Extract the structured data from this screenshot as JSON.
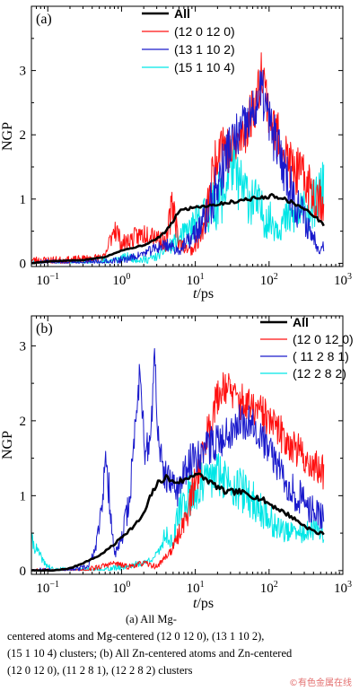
{
  "chart_data": [
    {
      "type": "line",
      "panel_label": "(a)",
      "xlabel_italic": "t",
      "xlabel_unit": "/ps",
      "ylabel": "NGP",
      "xscale": "log",
      "xlim": [
        0.06,
        1000
      ],
      "ylim": [
        -0.05,
        4.0
      ],
      "yticks": [
        "0",
        "1",
        "2",
        "3"
      ],
      "xticks": [
        {
          "v": 0.1,
          "base": "10",
          "exp": "−1"
        },
        {
          "v": 1,
          "base": "10",
          "exp": "0"
        },
        {
          "v": 10,
          "base": "10",
          "exp": "1"
        },
        {
          "v": 100,
          "base": "10",
          "exp": "2"
        },
        {
          "v": 1000,
          "base": "10",
          "exp": "3"
        }
      ],
      "legend_position": "top-center",
      "series": [
        {
          "name": "(15 1 10 4)",
          "color": "#00e6e6",
          "width": 1.0,
          "noise": 0.45,
          "seed": 11,
          "points": [
            [
              0.06,
              0.0
            ],
            [
              0.3,
              0.0
            ],
            [
              0.8,
              0.05
            ],
            [
              1.2,
              0.1
            ],
            [
              2,
              0.05
            ],
            [
              3,
              0.1
            ],
            [
              5,
              0.3
            ],
            [
              8,
              0.5
            ],
            [
              12,
              0.7
            ],
            [
              18,
              0.9
            ],
            [
              25,
              1.1
            ],
            [
              30,
              1.6
            ],
            [
              40,
              1.2
            ],
            [
              60,
              1.0
            ],
            [
              90,
              0.7
            ],
            [
              130,
              0.6
            ],
            [
              200,
              0.7
            ],
            [
              300,
              0.8
            ],
            [
              400,
              0.9
            ],
            [
              500,
              1.1
            ],
            [
              550,
              1.2
            ]
          ]
        },
        {
          "name": "(12 0 12 0)",
          "color": "#ff1010",
          "width": 1.0,
          "noise": 0.4,
          "seed": 23,
          "points": [
            [
              0.06,
              0.05
            ],
            [
              0.2,
              0.05
            ],
            [
              0.6,
              0.1
            ],
            [
              0.8,
              0.6
            ],
            [
              1.0,
              0.3
            ],
            [
              1.5,
              0.4
            ],
            [
              2.5,
              0.5
            ],
            [
              4,
              0.3
            ],
            [
              5,
              1.0
            ],
            [
              6,
              0.3
            ],
            [
              9,
              0.2
            ],
            [
              13,
              0.5
            ],
            [
              18,
              1.5
            ],
            [
              22,
              2.0
            ],
            [
              30,
              1.7
            ],
            [
              45,
              2.0
            ],
            [
              70,
              2.6
            ],
            [
              80,
              3.1
            ],
            [
              100,
              2.3
            ],
            [
              150,
              1.8
            ],
            [
              200,
              1.5
            ],
            [
              300,
              1.3
            ],
            [
              400,
              1.1
            ],
            [
              550,
              1.0
            ]
          ]
        },
        {
          "name": "(13 1 10 2)",
          "color": "#1a1acc",
          "width": 1.0,
          "noise": 0.4,
          "seed": 37,
          "points": [
            [
              0.06,
              0.0
            ],
            [
              0.5,
              0.0
            ],
            [
              1.0,
              0.05
            ],
            [
              1.5,
              0.1
            ],
            [
              2.5,
              0.2
            ],
            [
              4,
              0.3
            ],
            [
              6,
              0.2
            ],
            [
              9,
              0.4
            ],
            [
              14,
              0.7
            ],
            [
              20,
              1.2
            ],
            [
              28,
              1.8
            ],
            [
              40,
              2.0
            ],
            [
              60,
              2.3
            ],
            [
              80,
              2.7
            ],
            [
              100,
              2.2
            ],
            [
              150,
              1.6
            ],
            [
              220,
              1.0
            ],
            [
              300,
              0.7
            ],
            [
              400,
              0.4
            ],
            [
              500,
              0.2
            ],
            [
              550,
              0.3
            ]
          ]
        },
        {
          "name": "All",
          "color": "#000000",
          "width": 2.6,
          "noise": 0.03,
          "seed": 5,
          "points": [
            [
              0.06,
              0.0
            ],
            [
              0.1,
              0.03
            ],
            [
              0.3,
              0.05
            ],
            [
              0.6,
              0.1
            ],
            [
              1,
              0.2
            ],
            [
              2,
              0.28
            ],
            [
              3,
              0.38
            ],
            [
              4,
              0.5
            ],
            [
              5,
              0.65
            ],
            [
              6,
              0.82
            ],
            [
              8,
              0.85
            ],
            [
              10,
              0.88
            ],
            [
              15,
              0.9
            ],
            [
              20,
              0.92
            ],
            [
              30,
              0.95
            ],
            [
              50,
              1.0
            ],
            [
              80,
              1.02
            ],
            [
              110,
              1.05
            ],
            [
              150,
              1.02
            ],
            [
              250,
              0.9
            ],
            [
              400,
              0.75
            ],
            [
              550,
              0.6
            ]
          ]
        }
      ],
      "legend_order": [
        "All",
        "(12 0 12 0)",
        "(13 1 10 2)",
        "(15 1 10 4)"
      ]
    },
    {
      "type": "line",
      "panel_label": "(b)",
      "xlabel_italic": "t",
      "xlabel_unit": "/ps",
      "ylabel": "NGP",
      "xscale": "log",
      "xlim": [
        0.06,
        1000
      ],
      "ylim": [
        -0.05,
        3.4
      ],
      "yticks": [
        "0",
        "1",
        "2",
        "3"
      ],
      "xticks": [
        {
          "v": 0.1,
          "base": "10",
          "exp": "−1"
        },
        {
          "v": 1,
          "base": "10",
          "exp": "0"
        },
        {
          "v": 10,
          "base": "10",
          "exp": "1"
        },
        {
          "v": 100,
          "base": "10",
          "exp": "2"
        },
        {
          "v": 1000,
          "base": "10",
          "exp": "3"
        }
      ],
      "legend_position": "top-right",
      "series": [
        {
          "name": "(12 2 8 2)",
          "color": "#00e6e6",
          "width": 1.0,
          "noise": 0.3,
          "seed": 41,
          "points": [
            [
              0.06,
              0.4
            ],
            [
              0.09,
              0.1
            ],
            [
              0.12,
              0.0
            ],
            [
              0.5,
              0.0
            ],
            [
              1,
              0.05
            ],
            [
              2,
              0.1
            ],
            [
              3,
              0.2
            ],
            [
              4,
              0.5
            ],
            [
              5,
              0.35
            ],
            [
              6,
              0.8
            ],
            [
              8,
              1.0
            ],
            [
              10,
              1.05
            ],
            [
              14,
              1.2
            ],
            [
              20,
              1.3
            ],
            [
              30,
              1.2
            ],
            [
              50,
              1.0
            ],
            [
              80,
              0.8
            ],
            [
              120,
              0.6
            ],
            [
              200,
              0.5
            ],
            [
              300,
              0.5
            ],
            [
              450,
              0.55
            ],
            [
              550,
              0.5
            ]
          ]
        },
        {
          "name": "(12 0 12 0)",
          "color": "#ff1010",
          "width": 1.0,
          "noise": 0.25,
          "seed": 53,
          "points": [
            [
              0.06,
              0.0
            ],
            [
              0.3,
              0.0
            ],
            [
              0.5,
              0.05
            ],
            [
              0.8,
              0.1
            ],
            [
              1.2,
              0.05
            ],
            [
              2,
              0.1
            ],
            [
              3,
              0.05
            ],
            [
              5,
              0.3
            ],
            [
              8,
              0.8
            ],
            [
              12,
              1.5
            ],
            [
              18,
              2.2
            ],
            [
              25,
              2.5
            ],
            [
              35,
              2.3
            ],
            [
              50,
              2.2
            ],
            [
              80,
              2.1
            ],
            [
              100,
              2.0
            ],
            [
              150,
              1.8
            ],
            [
              200,
              1.7
            ],
            [
              300,
              1.5
            ],
            [
              400,
              1.4
            ],
            [
              550,
              1.3
            ]
          ]
        },
        {
          "name": "( 11 2 8 1)",
          "color": "#1a1acc",
          "width": 1.0,
          "noise": 0.25,
          "seed": 67,
          "points": [
            [
              0.06,
              0.0
            ],
            [
              0.2,
              0.0
            ],
            [
              0.35,
              0.05
            ],
            [
              0.45,
              0.3
            ],
            [
              0.55,
              1.0
            ],
            [
              0.62,
              1.45
            ],
            [
              0.7,
              0.9
            ],
            [
              0.8,
              0.2
            ],
            [
              1.0,
              0.4
            ],
            [
              1.3,
              1.0
            ],
            [
              1.6,
              2.2
            ],
            [
              1.8,
              2.7
            ],
            [
              2.1,
              1.5
            ],
            [
              2.5,
              1.8
            ],
            [
              2.8,
              2.9
            ],
            [
              3.2,
              1.6
            ],
            [
              4,
              1.2
            ],
            [
              6,
              1.1
            ],
            [
              9,
              1.5
            ],
            [
              12,
              1.6
            ],
            [
              18,
              1.7
            ],
            [
              25,
              1.8
            ],
            [
              40,
              2.0
            ],
            [
              60,
              2.0
            ],
            [
              100,
              1.6
            ],
            [
              150,
              1.3
            ],
            [
              200,
              1.1
            ],
            [
              300,
              0.9
            ],
            [
              400,
              0.8
            ],
            [
              550,
              0.7
            ]
          ]
        },
        {
          "name": "All",
          "color": "#000000",
          "width": 2.6,
          "noise": 0.04,
          "seed": 7,
          "points": [
            [
              0.06,
              0.0
            ],
            [
              0.12,
              0.0
            ],
            [
              0.2,
              0.03
            ],
            [
              0.3,
              0.1
            ],
            [
              0.5,
              0.2
            ],
            [
              0.8,
              0.35
            ],
            [
              1,
              0.45
            ],
            [
              1.5,
              0.6
            ],
            [
              2,
              0.75
            ],
            [
              2.5,
              1.0
            ],
            [
              3,
              1.15
            ],
            [
              4,
              1.25
            ],
            [
              5,
              1.18
            ],
            [
              7,
              1.2
            ],
            [
              10,
              1.3
            ],
            [
              15,
              1.2
            ],
            [
              25,
              1.05
            ],
            [
              40,
              1.05
            ],
            [
              60,
              1.0
            ],
            [
              80,
              0.95
            ],
            [
              120,
              0.85
            ],
            [
              200,
              0.72
            ],
            [
              300,
              0.6
            ],
            [
              450,
              0.5
            ],
            [
              550,
              0.5
            ]
          ]
        }
      ],
      "legend_order": [
        "All",
        "(12 0 12 0)",
        "( 11 2 8 1)",
        "(12 2 8 2)"
      ]
    }
  ],
  "caption": {
    "line1": "(a)  All  Mg-",
    "line2": "centered  atoms  and  Mg-centered  (12  0  12  0),  (13  1  10  2),",
    "line3": "(15 1 10 4) clusters; (b) All Zn-centered atoms and Zn-centered",
    "line4": "(12 0 12 0), (11 2 8 1), (12 2 8 2) clusters"
  },
  "watermark": "©有色金属在线"
}
